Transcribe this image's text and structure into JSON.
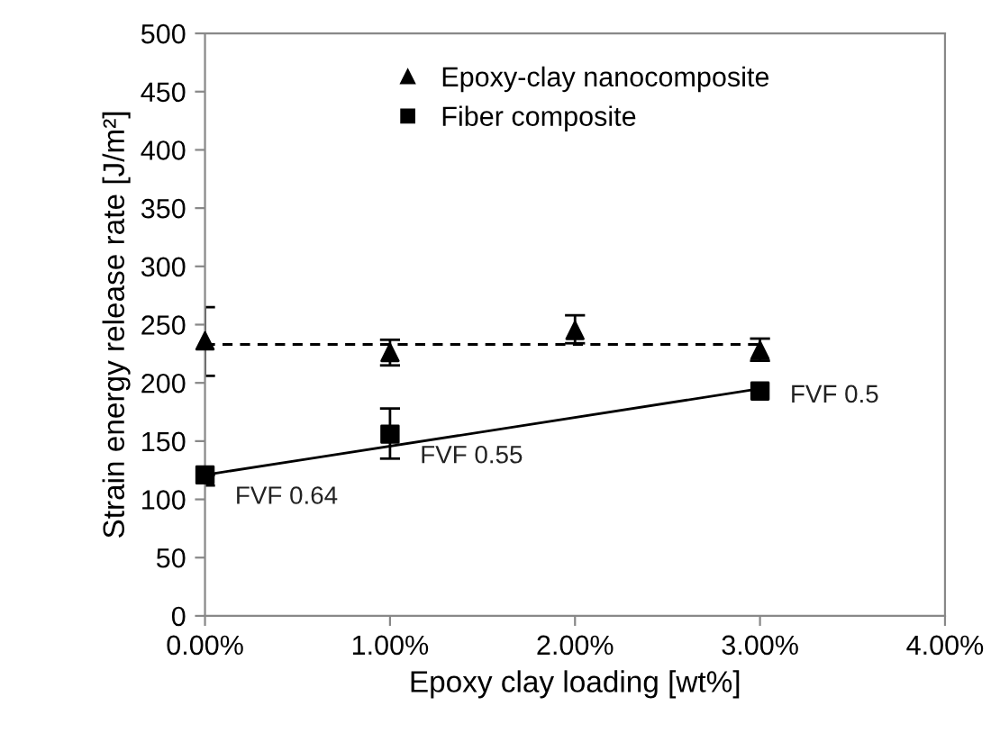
{
  "chart_data": {
    "type": "scatter",
    "xlabel": "Epoxy clay loading [wt%]",
    "ylabel": "Strain energy release rate [J/m²]",
    "xlim": [
      0,
      4
    ],
    "xticks": [
      {
        "value": 0,
        "label": "0.00%"
      },
      {
        "value": 1,
        "label": "1.00%"
      },
      {
        "value": 2,
        "label": "2.00%"
      },
      {
        "value": 3,
        "label": "3.00%"
      },
      {
        "value": 4,
        "label": "4.00%"
      }
    ],
    "ylim": [
      0,
      500
    ],
    "yticks": [
      0,
      50,
      100,
      150,
      200,
      250,
      300,
      350,
      400,
      450,
      500
    ],
    "grid": false,
    "legend": "top",
    "series": [
      {
        "name": "Epoxy-clay nanocomposite",
        "marker": "triangle",
        "color": "#000000",
        "x": [
          0,
          1,
          2,
          3
        ],
        "values": [
          236,
          226,
          245,
          228
        ],
        "errors": [
          [
            206,
            265
          ],
          [
            215,
            237
          ],
          [
            234,
            258
          ],
          [
            219,
            238
          ]
        ]
      },
      {
        "name": "Fiber composite",
        "marker": "square",
        "color": "#000000",
        "x": [
          0,
          1,
          3
        ],
        "values": [
          121,
          156,
          193
        ],
        "errors": [
          [
            112,
            121
          ],
          [
            135,
            178
          ],
          null
        ]
      },
      {
        "type": "line",
        "line_style": "dashed",
        "color": "#000000",
        "x": [
          0,
          3
        ],
        "values": [
          233,
          233
        ]
      },
      {
        "type": "line",
        "line_style": "solid",
        "color": "#000000",
        "x": [
          0,
          3
        ],
        "values": [
          121,
          195
        ]
      }
    ],
    "annotations": [
      {
        "text": "FVF 0.64",
        "x": 0,
        "y": 121
      },
      {
        "text": "FVF 0.55",
        "x": 1,
        "y": 156
      },
      {
        "text": "FVF 0.5",
        "x": 3,
        "y": 193
      }
    ]
  }
}
